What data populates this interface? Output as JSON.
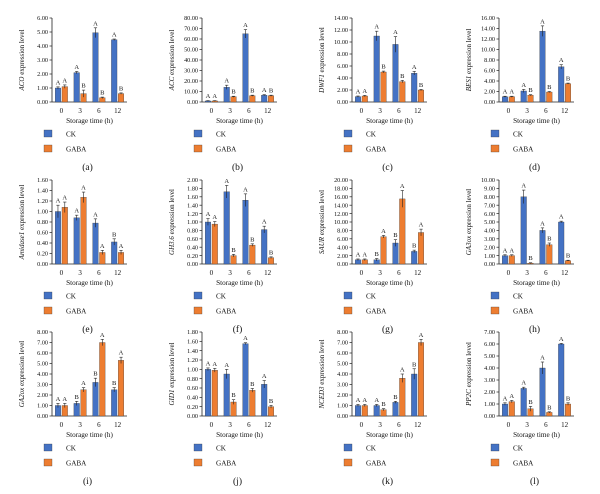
{
  "colors": {
    "ck": "#4472C4",
    "gaba": "#ED7D31",
    "axis": "#222222"
  },
  "legend": {
    "ck_label": "CK",
    "gaba_label": "GABA"
  },
  "chart_data": [
    {
      "id": "a",
      "caption": "(a)",
      "type": "bar",
      "ylabel": "ACO expression level",
      "xlabel": "Storage time (h)",
      "categories": [
        "0",
        "3",
        "6",
        "12"
      ],
      "ylim": [
        0,
        6.0
      ],
      "yticks": [
        "0.00",
        "1.00",
        "2.00",
        "3.00",
        "4.00",
        "5.00",
        "6.00"
      ],
      "series": [
        {
          "name": "CK",
          "values": [
            1.0,
            2.1,
            4.95,
            4.45
          ],
          "errors": [
            0.08,
            0.08,
            0.35,
            0.05
          ],
          "letters": [
            "A",
            "A",
            "A",
            "A"
          ]
        },
        {
          "name": "GABA",
          "values": [
            1.1,
            0.6,
            0.3,
            0.6
          ],
          "errors": [
            0.12,
            0.25,
            0.05,
            0.05
          ],
          "letters": [
            "A",
            "B",
            "B",
            "B"
          ]
        }
      ]
    },
    {
      "id": "b",
      "caption": "(b)",
      "type": "bar",
      "ylabel": "ACC expression level",
      "xlabel": "Storage time (h)",
      "categories": [
        "0",
        "3",
        "6",
        "12"
      ],
      "ylim": [
        0,
        80
      ],
      "yticks": [
        "0.00",
        "10.00",
        "20.00",
        "30.00",
        "40.00",
        "50.00",
        "60.00",
        "70.00",
        "80.00"
      ],
      "series": [
        {
          "name": "CK",
          "values": [
            1.0,
            14.0,
            65.0,
            6.5
          ],
          "errors": [
            0.3,
            2.0,
            4.0,
            0.5
          ],
          "letters": [
            "A",
            "A",
            "A",
            "A"
          ]
        },
        {
          "name": "GABA",
          "values": [
            1.0,
            5.0,
            6.0,
            6.0
          ],
          "errors": [
            0.3,
            0.5,
            0.5,
            0.5
          ],
          "letters": [
            "A",
            "B",
            "B",
            "B"
          ]
        }
      ]
    },
    {
      "id": "c",
      "caption": "(c)",
      "type": "bar",
      "ylabel": "DWF1 expression level",
      "xlabel": "Storage time (h)",
      "categories": [
        "0",
        "3",
        "6",
        "12"
      ],
      "ylim": [
        0,
        14
      ],
      "yticks": [
        "0.00",
        "2.00",
        "4.00",
        "6.00",
        "8.00",
        "10.00",
        "12.00",
        "14.00"
      ],
      "series": [
        {
          "name": "CK",
          "values": [
            0.9,
            11.0,
            9.6,
            4.8
          ],
          "errors": [
            0.1,
            0.8,
            1.3,
            0.3
          ],
          "letters": [
            "A",
            "A",
            "A",
            "A"
          ]
        },
        {
          "name": "GABA",
          "values": [
            1.0,
            5.0,
            3.4,
            2.0
          ],
          "errors": [
            0.1,
            0.15,
            0.2,
            0.1
          ],
          "letters": [
            "A",
            "B",
            "B",
            "B"
          ]
        }
      ]
    },
    {
      "id": "d",
      "caption": "(d)",
      "type": "bar",
      "ylabel": "BES1 expression level",
      "xlabel": "Storage time (h)",
      "categories": [
        "0",
        "3",
        "6",
        "12"
      ],
      "ylim": [
        0,
        16
      ],
      "yticks": [
        "0.00",
        "2.00",
        "4.00",
        "6.00",
        "8.00",
        "10.00",
        "12.00",
        "14.00",
        "16.00"
      ],
      "series": [
        {
          "name": "CK",
          "values": [
            1.0,
            2.1,
            13.5,
            6.7
          ],
          "errors": [
            0.1,
            0.3,
            1.0,
            0.4
          ],
          "letters": [
            "A",
            "A",
            "A",
            "A"
          ]
        },
        {
          "name": "GABA",
          "values": [
            1.0,
            1.3,
            1.9,
            3.5
          ],
          "errors": [
            0.1,
            0.1,
            0.1,
            0.1
          ],
          "letters": [
            "A",
            "B",
            "B",
            "B"
          ]
        }
      ]
    },
    {
      "id": "e",
      "caption": "(e)",
      "type": "bar",
      "ylabel": "Amidase1 expression level",
      "xlabel": "Storage time (h)",
      "categories": [
        "0",
        "3",
        "6",
        "12"
      ],
      "ylim": [
        0,
        1.6
      ],
      "yticks": [
        "0.00",
        "0.20",
        "0.40",
        "0.60",
        "0.80",
        "1.00",
        "1.20",
        "1.40",
        "1.60"
      ],
      "series": [
        {
          "name": "CK",
          "values": [
            1.0,
            0.88,
            0.78,
            0.42
          ],
          "errors": [
            0.12,
            0.05,
            0.08,
            0.06
          ],
          "letters": [
            "A",
            "A",
            "A",
            "B"
          ]
        },
        {
          "name": "GABA",
          "values": [
            1.08,
            1.27,
            0.22,
            0.22
          ],
          "errors": [
            0.1,
            0.1,
            0.04,
            0.04
          ],
          "letters": [
            "A",
            "A",
            "A",
            "A"
          ]
        }
      ]
    },
    {
      "id": "f",
      "caption": "(f)",
      "type": "bar",
      "ylabel": "GH3.6 expression level",
      "xlabel": "Storage time (h)",
      "categories": [
        "0",
        "3",
        "6",
        "12"
      ],
      "ylim": [
        0,
        2.0
      ],
      "yticks": [
        "0.00",
        "0.20",
        "0.40",
        "0.60",
        "0.80",
        "1.00",
        "1.20",
        "1.40",
        "1.60",
        "1.80",
        "2.00"
      ],
      "series": [
        {
          "name": "CK",
          "values": [
            1.0,
            1.72,
            1.52,
            0.82
          ],
          "errors": [
            0.08,
            0.15,
            0.15,
            0.08
          ],
          "letters": [
            "A",
            "A",
            "A",
            "A"
          ]
        },
        {
          "name": "GABA",
          "values": [
            0.95,
            0.2,
            0.45,
            0.15
          ],
          "errors": [
            0.06,
            0.03,
            0.03,
            0.02
          ],
          "letters": [
            "A",
            "B",
            "B",
            "B"
          ]
        }
      ]
    },
    {
      "id": "g",
      "caption": "(g)",
      "type": "bar",
      "ylabel": "SAUR expression level",
      "xlabel": "Storage time (h)",
      "categories": [
        "0",
        "3",
        "6",
        "12"
      ],
      "ylim": [
        0,
        20
      ],
      "yticks": [
        "0.00",
        "2.00",
        "4.00",
        "6.00",
        "8.00",
        "10.00",
        "12.00",
        "14.00",
        "16.00",
        "18.00",
        "20.00"
      ],
      "series": [
        {
          "name": "CK",
          "values": [
            1.0,
            1.0,
            5.0,
            3.0
          ],
          "errors": [
            0.2,
            0.3,
            0.8,
            0.3
          ],
          "letters": [
            "A",
            "B",
            "B",
            "B"
          ]
        },
        {
          "name": "GABA",
          "values": [
            1.0,
            6.5,
            15.5,
            7.5
          ],
          "errors": [
            0.2,
            0.3,
            2.0,
            0.8
          ],
          "letters": [
            "A",
            "A",
            "A",
            "A"
          ]
        }
      ]
    },
    {
      "id": "h",
      "caption": "(h)",
      "type": "bar",
      "ylabel": "GA3ox expression level",
      "xlabel": "Storage time (h)",
      "categories": [
        "0",
        "3",
        "6",
        "12"
      ],
      "ylim": [
        0,
        10
      ],
      "yticks": [
        "0.00",
        "1.00",
        "2.00",
        "3.00",
        "4.00",
        "5.00",
        "6.00",
        "7.00",
        "8.00",
        "9.00",
        "10.00"
      ],
      "series": [
        {
          "name": "CK",
          "values": [
            1.0,
            8.0,
            4.0,
            5.0
          ],
          "errors": [
            0.1,
            0.8,
            0.3,
            0.1
          ],
          "letters": [
            "A",
            "A",
            "A",
            "A"
          ]
        },
        {
          "name": "GABA",
          "values": [
            1.0,
            0.1,
            2.3,
            0.4
          ],
          "errors": [
            0.1,
            0.05,
            0.2,
            0.05
          ],
          "letters": [
            "A",
            "B",
            "B",
            "B"
          ]
        }
      ]
    },
    {
      "id": "i",
      "caption": "(i)",
      "type": "bar",
      "ylabel": "GA2ox expression level",
      "xlabel": "Storage time (h)",
      "categories": [
        "0",
        "3",
        "6",
        "12"
      ],
      "ylim": [
        0,
        8
      ],
      "yticks": [
        "0.00",
        "1.00",
        "2.00",
        "3.00",
        "4.00",
        "5.00",
        "6.00",
        "7.00",
        "8.00"
      ],
      "series": [
        {
          "name": "CK",
          "values": [
            1.0,
            1.2,
            3.2,
            2.5
          ],
          "errors": [
            0.2,
            0.2,
            0.4,
            0.2
          ],
          "letters": [
            "A",
            "B",
            "B",
            "B"
          ]
        },
        {
          "name": "GABA",
          "values": [
            1.0,
            2.5,
            7.0,
            5.3
          ],
          "errors": [
            0.2,
            0.2,
            0.3,
            0.3
          ],
          "letters": [
            "A",
            "A",
            "A",
            "A"
          ]
        }
      ]
    },
    {
      "id": "j",
      "caption": "(j)",
      "type": "bar",
      "ylabel": "GID1 expression level",
      "xlabel": "Storage time (h)",
      "categories": [
        "0",
        "3",
        "6",
        "12"
      ],
      "ylim": [
        0,
        1.8
      ],
      "yticks": [
        "0.00",
        "0.20",
        "0.40",
        "0.60",
        "0.80",
        "1.00",
        "1.20",
        "1.40",
        "1.60",
        "1.80"
      ],
      "series": [
        {
          "name": "CK",
          "values": [
            1.0,
            0.9,
            1.55,
            0.68
          ],
          "errors": [
            0.03,
            0.1,
            0.02,
            0.08
          ],
          "letters": [
            "A",
            "A",
            "A",
            "A"
          ]
        },
        {
          "name": "GABA",
          "values": [
            0.98,
            0.3,
            0.55,
            0.2
          ],
          "errors": [
            0.04,
            0.05,
            0.04,
            0.03
          ],
          "letters": [
            "A",
            "B",
            "B",
            "B"
          ]
        }
      ]
    },
    {
      "id": "k",
      "caption": "(k)",
      "type": "bar",
      "ylabel": "NCED3 expression level",
      "xlabel": "Storage time (h)",
      "categories": [
        "0",
        "3",
        "6",
        "12"
      ],
      "ylim": [
        0,
        8
      ],
      "yticks": [
        "0.00",
        "1.00",
        "2.00",
        "3.00",
        "4.00",
        "5.00",
        "6.00",
        "7.00",
        "8.00"
      ],
      "series": [
        {
          "name": "CK",
          "values": [
            1.0,
            1.0,
            1.3,
            4.0
          ],
          "errors": [
            0.1,
            0.1,
            0.1,
            0.5
          ],
          "letters": [
            "A",
            "A",
            "B",
            "B"
          ]
        },
        {
          "name": "GABA",
          "values": [
            1.0,
            0.6,
            3.6,
            7.0
          ],
          "errors": [
            0.1,
            0.1,
            0.4,
            0.3
          ],
          "letters": [
            "A",
            "B",
            "A",
            "A"
          ]
        }
      ]
    },
    {
      "id": "l",
      "caption": "(l)",
      "type": "bar",
      "ylabel": "PP2C expression level",
      "xlabel": "Storage time (h)",
      "categories": [
        "0",
        "3",
        "6",
        "12"
      ],
      "ylim": [
        0,
        7
      ],
      "yticks": [
        "0.00",
        "1.00",
        "2.00",
        "3.00",
        "4.00",
        "5.00",
        "6.00",
        "7.00"
      ],
      "series": [
        {
          "name": "CK",
          "values": [
            1.0,
            2.3,
            4.0,
            6.0
          ],
          "errors": [
            0.1,
            0.1,
            0.5,
            0.05
          ],
          "letters": [
            "A",
            "A",
            "A",
            "A"
          ]
        },
        {
          "name": "GABA",
          "values": [
            1.2,
            0.6,
            0.3,
            1.0
          ],
          "errors": [
            0.1,
            0.2,
            0.05,
            0.1
          ],
          "letters": [
            "A",
            "B",
            "B",
            "B"
          ]
        }
      ]
    }
  ]
}
